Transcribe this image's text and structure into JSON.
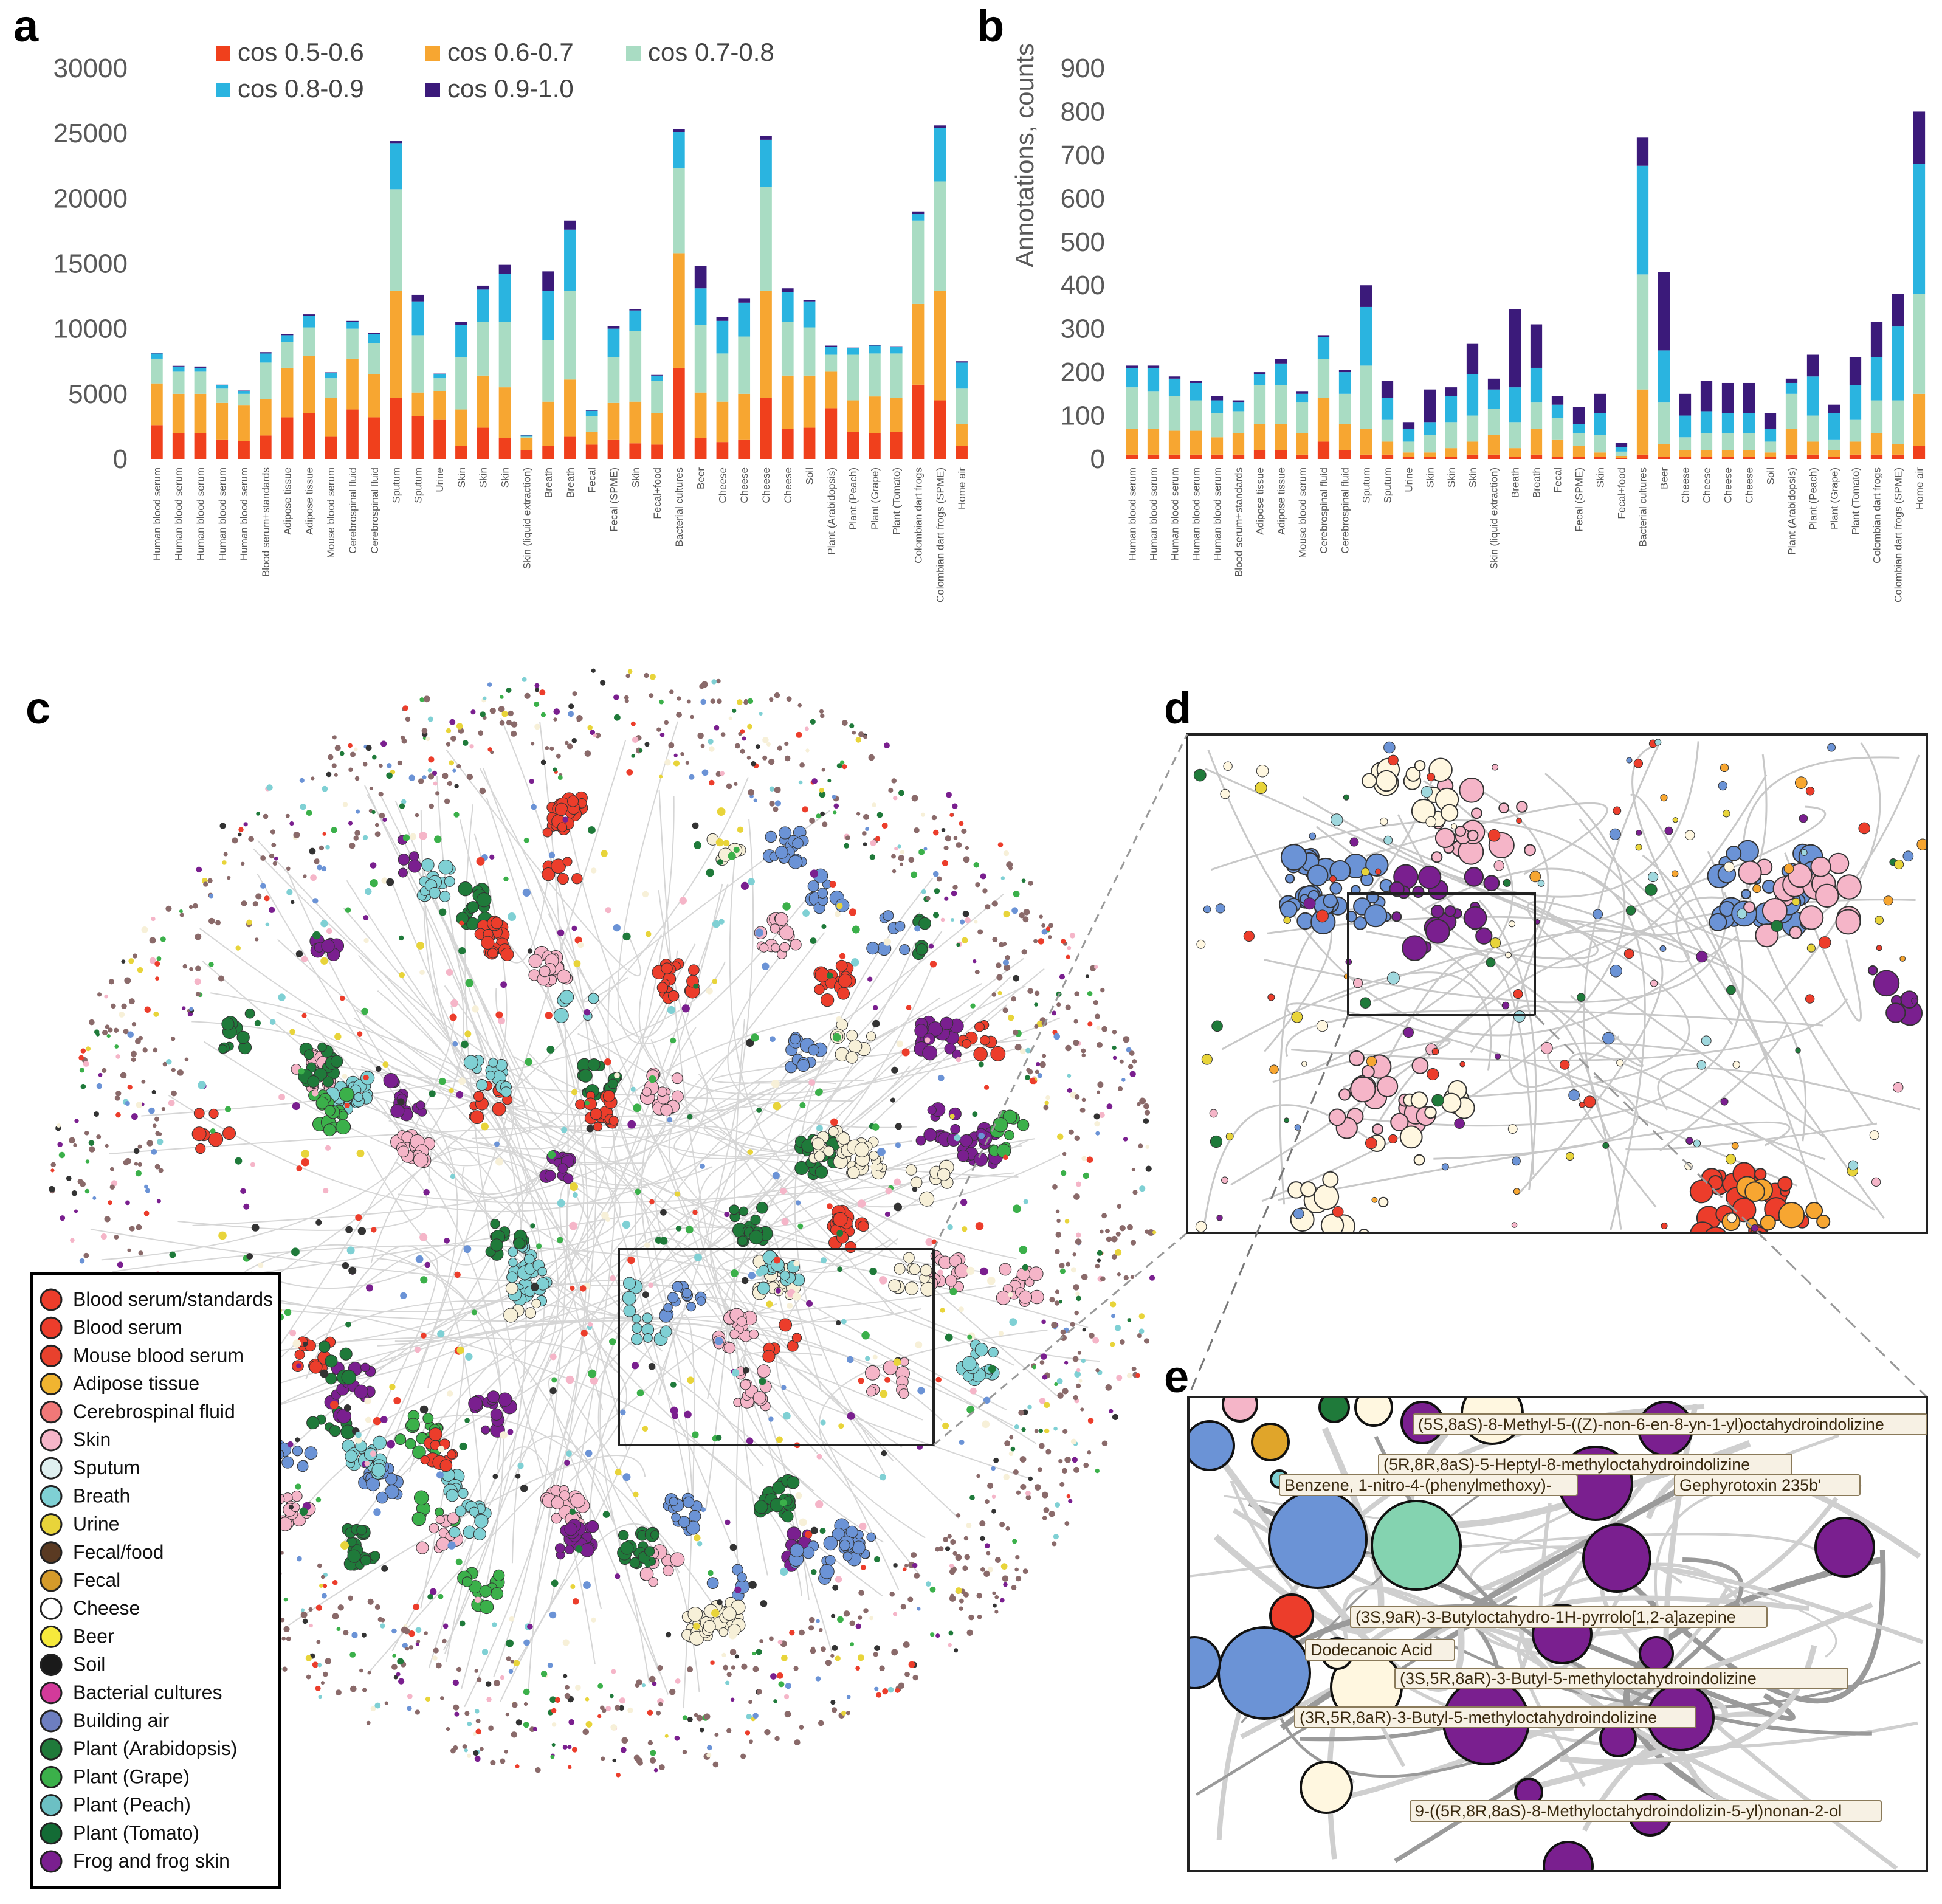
{
  "panels": {
    "a": "a",
    "b": "b",
    "c": "c",
    "d": "d",
    "e": "e"
  },
  "colors": {
    "cos 0.5-0.6": "#f0401c",
    "cos 0.6-0.7": "#f7a631",
    "cos 0.7-0.8": "#a9dcc3",
    "cos 0.8-0.9": "#2ab4e0",
    "cos 0.9-1.0": "#3b1a7a"
  },
  "chart_data": [
    {
      "type": "bar",
      "stacked": true,
      "panel": "a",
      "title": "",
      "ylabel": "",
      "ylim": [
        0,
        30000
      ],
      "yticks": [
        "0",
        "5000",
        "10000",
        "15000",
        "20000",
        "25000",
        "30000"
      ],
      "ytick_values": [
        0,
        5000,
        10000,
        15000,
        20000,
        25000,
        30000
      ],
      "categories": [
        "Human blood serum",
        "Human blood serum",
        "Human blood serum",
        "Human blood serum",
        "Human blood serum",
        "Blood serum+standards",
        "Adipose tissue",
        "Adipose tissue",
        "Mouse blood serum",
        "Cerebrospinal fluid",
        "Cerebrospinal fluid",
        "Sputum",
        "Sputum",
        "Urine",
        "Skin",
        "Skin",
        "Skin",
        "Skin (liquid extraction)",
        "Breath",
        "Breath",
        "Fecal",
        "Fecal (SPME)",
        "Skin",
        "Fecal+food",
        "Bacterial cultures",
        "Beer",
        "Cheese",
        "Cheese",
        "Cheese",
        "Cheese",
        "Soil",
        "Plant (Arabidopsis)",
        "Plant (Peach)",
        "Plant (Grape)",
        "Plant (Tomato)",
        "Colombian dart frogs",
        "Colombian dart frogs (SPME)",
        "Home air"
      ],
      "series": [
        {
          "name": "cos 0.5-0.6",
          "values": [
            2600,
            2000,
            2000,
            1500,
            1400,
            1800,
            3200,
            3500,
            1700,
            3800,
            3200,
            4700,
            3300,
            3000,
            1000,
            2400,
            1600,
            700,
            1000,
            1700,
            1100,
            1500,
            1200,
            1100,
            7000,
            1600,
            1300,
            1500,
            4700,
            2300,
            2400,
            3900,
            2100,
            2000,
            2100,
            5700,
            4500,
            1000
          ]
        },
        {
          "name": "cos 0.6-0.7",
          "values": [
            3200,
            3000,
            3000,
            2800,
            2700,
            2800,
            3800,
            4400,
            3000,
            3900,
            3300,
            8200,
            1800,
            2200,
            2800,
            4000,
            3900,
            900,
            3400,
            4400,
            1000,
            2800,
            3200,
            2400,
            8800,
            3500,
            3100,
            3500,
            8200,
            4100,
            4000,
            2800,
            2400,
            2800,
            2600,
            6200,
            8400,
            1700
          ]
        },
        {
          "name": "cos 0.7-0.8",
          "values": [
            1900,
            1700,
            1700,
            1100,
            900,
            2800,
            2000,
            2200,
            1500,
            2300,
            2400,
            7800,
            4400,
            1000,
            4000,
            4100,
            5000,
            100,
            4700,
            6800,
            1200,
            3500,
            5400,
            2500,
            6500,
            5200,
            3700,
            4400,
            8000,
            4100,
            3700,
            1300,
            3500,
            3300,
            3400,
            6400,
            8400,
            2700
          ]
        },
        {
          "name": "cos 0.8-0.9",
          "values": [
            400,
            400,
            300,
            250,
            200,
            700,
            500,
            900,
            400,
            500,
            700,
            3500,
            2600,
            300,
            2500,
            2500,
            3700,
            100,
            3800,
            4700,
            400,
            2200,
            1600,
            400,
            2800,
            2800,
            2500,
            2600,
            3600,
            2300,
            2000,
            600,
            500,
            600,
            500,
            500,
            4100,
            2000
          ]
        },
        {
          "name": "cos 0.9-1.0",
          "values": [
            50,
            50,
            100,
            50,
            50,
            100,
            100,
            100,
            50,
            100,
            100,
            200,
            500,
            50,
            200,
            300,
            700,
            50,
            1500,
            700,
            50,
            200,
            100,
            50,
            200,
            1700,
            300,
            300,
            300,
            300,
            100,
            100,
            50,
            50,
            50,
            200,
            200,
            100
          ]
        }
      ]
    },
    {
      "type": "bar",
      "stacked": true,
      "panel": "b",
      "title": "",
      "ylabel": "Annotations, counts",
      "ylim": [
        0,
        900
      ],
      "yticks": [
        "0",
        "100",
        "200",
        "300",
        "400",
        "500",
        "600",
        "700",
        "800",
        "900"
      ],
      "ytick_values": [
        0,
        100,
        200,
        300,
        400,
        500,
        600,
        700,
        800,
        900
      ],
      "categories": [
        "Human blood serum",
        "Human blood serum",
        "Human blood serum",
        "Human blood serum",
        "Human blood serum",
        "Blood serum+standards",
        "Adipose tissue",
        "Adipose tissue",
        "Mouse blood serum",
        "Cerebrospinal fluid",
        "Cerebrospinal fluid",
        "Sputum",
        "Sputum",
        "Urine",
        "Skin",
        "Skin",
        "Skin",
        "Skin (liquid extraction)",
        "Breath",
        "Breath",
        "Fecal",
        "Fecal (SPME)",
        "Skin",
        "Fecal+food",
        "Bacterial cultures",
        "Beer",
        "Cheese",
        "Cheese",
        "Cheese",
        "Cheese",
        "Soil",
        "Plant (Arabidopsis)",
        "Plant (Peach)",
        "Plant (Grape)",
        "Plant (Tomato)",
        "Colombian dart frogs",
        "Colombian dart frogs (SPME)",
        "Home air"
      ],
      "series": [
        {
          "name": "cos 0.5-0.6",
          "values": [
            10,
            10,
            10,
            10,
            10,
            10,
            20,
            20,
            10,
            40,
            20,
            10,
            10,
            5,
            5,
            5,
            10,
            10,
            5,
            10,
            5,
            5,
            5,
            2,
            10,
            5,
            5,
            5,
            5,
            5,
            5,
            10,
            10,
            5,
            10,
            10,
            10,
            30
          ]
        },
        {
          "name": "cos 0.6-0.7",
          "values": [
            60,
            60,
            55,
            55,
            40,
            50,
            60,
            60,
            50,
            100,
            60,
            60,
            30,
            10,
            10,
            20,
            30,
            45,
            20,
            60,
            40,
            25,
            10,
            5,
            150,
            30,
            15,
            15,
            15,
            15,
            10,
            60,
            30,
            15,
            30,
            50,
            25,
            120
          ]
        },
        {
          "name": "cos 0.7-0.8",
          "values": [
            95,
            85,
            80,
            70,
            55,
            50,
            90,
            90,
            70,
            90,
            70,
            145,
            50,
            25,
            40,
            60,
            60,
            60,
            60,
            60,
            50,
            30,
            40,
            10,
            265,
            95,
            30,
            40,
            40,
            40,
            25,
            80,
            60,
            25,
            50,
            75,
            100,
            230
          ]
        },
        {
          "name": "cos 0.8-0.9",
          "values": [
            45,
            55,
            40,
            40,
            30,
            20,
            25,
            50,
            20,
            50,
            50,
            135,
            50,
            30,
            30,
            60,
            95,
            45,
            80,
            80,
            30,
            20,
            50,
            10,
            250,
            120,
            50,
            50,
            45,
            45,
            30,
            25,
            90,
            60,
            80,
            100,
            170,
            300
          ]
        },
        {
          "name": "cos 0.9-1.0",
          "values": [
            5,
            5,
            5,
            5,
            10,
            5,
            5,
            10,
            5,
            5,
            5,
            50,
            40,
            15,
            75,
            20,
            70,
            25,
            180,
            100,
            20,
            40,
            45,
            10,
            65,
            180,
            50,
            70,
            70,
            70,
            35,
            10,
            50,
            20,
            65,
            80,
            75,
            120
          ]
        }
      ]
    }
  ],
  "network_legend": [
    {
      "label": "Blood serum/standards",
      "color": "#ec3d2b"
    },
    {
      "label": "Blood serum",
      "color": "#ec3d2b"
    },
    {
      "label": "Mouse blood serum",
      "color": "#e8412d"
    },
    {
      "label": "Adipose tissue",
      "color": "#f0b430"
    },
    {
      "label": "Cerebrospinal fluid",
      "color": "#f07878"
    },
    {
      "label": "Skin",
      "color": "#f5b5c8"
    },
    {
      "label": "Sputum",
      "color": "#dff0f0"
    },
    {
      "label": "Breath",
      "color": "#7fd0d4"
    },
    {
      "label": "Urine",
      "color": "#e8d43a"
    },
    {
      "label": "Fecal/food",
      "color": "#5a3a22"
    },
    {
      "label": "Fecal",
      "color": "#d49a2a"
    },
    {
      "label": "Cheese",
      "color": "#ffffff"
    },
    {
      "label": "Beer",
      "color": "#f6ea3c"
    },
    {
      "label": "Soil",
      "color": "#1a1a1a"
    },
    {
      "label": "Bacterial cultures",
      "color": "#d23a9a"
    },
    {
      "label": "Building air",
      "color": "#6d7ec0"
    },
    {
      "label": "Plant (Arabidopsis)",
      "color": "#1f7a3a"
    },
    {
      "label": "Plant (Grape)",
      "color": "#3bb04a"
    },
    {
      "label": "Plant (Peach)",
      "color": "#6cc0c4"
    },
    {
      "label": "Plant (Tomato)",
      "color": "#136b35"
    },
    {
      "label": "Frog and frog skin",
      "color": "#7a1f8f"
    }
  ],
  "annotations_e": [
    "(5S,8aS)-8-Methyl-5-((Z)-non-6-en-8-yn-1-yl)octahydroindolizine",
    "(5R,8R,8aS)-5-Heptyl-8-methyloctahydroindolizine",
    "Benzene, 1-nitro-4-(phenylmethoxy)-",
    "Gephyrotoxin 235b'",
    "(3S,9aR)-3-Butyloctahydro-1H-pyrrolo[1,2-a]azepine",
    "Dodecanoic Acid",
    "(3S,5R,8aR)-3-Butyl-5-methyloctahydroindolizine",
    "(3R,5R,8aR)-3-Butyl-5-methyloctahydroindolizine",
    "9-((5R,8R,8aS)-8-Methyloctahydroindolizin-5-yl)nonan-2-ol"
  ]
}
